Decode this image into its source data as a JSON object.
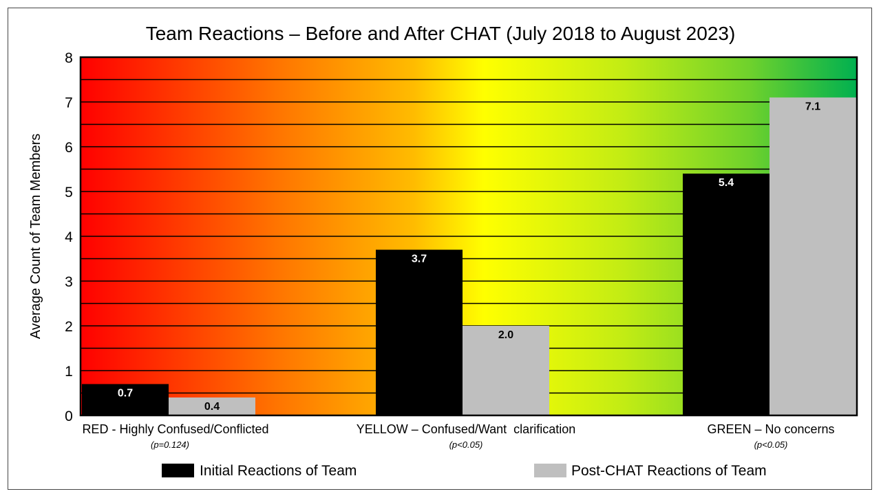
{
  "chart_data": {
    "type": "bar",
    "title": "Team Reactions – Before and After CHAT (July 2018 to August 2023)",
    "xlabel": "",
    "ylabel": "Average Count of Team Members",
    "ylim": [
      0,
      8
    ],
    "yticks": [
      "0",
      "1",
      "2",
      "3",
      "4",
      "5",
      "6",
      "7",
      "8"
    ],
    "categories": [
      "RED - Highly Confused/Conflicted",
      "YELLOW – Confused/Want  clarification",
      "GREEN – No concerns"
    ],
    "category_notes": [
      "(p=0.124)",
      "(p<0.05)",
      "(p<0.05)"
    ],
    "series": [
      {
        "name": "Initial Reactions of Team",
        "values": [
          0.7,
          3.7,
          5.4
        ],
        "labels": [
          "0.7",
          "3.7",
          "5.4"
        ],
        "color": "#000000"
      },
      {
        "name": "Post-CHAT Reactions of Team",
        "values": [
          0.4,
          2.0,
          7.1
        ],
        "labels": [
          "0.4",
          "2.0",
          "7.1"
        ],
        "color": "#bfbfbf"
      }
    ],
    "grid": true,
    "background": "red-yellow-green gradient",
    "legend_position": "bottom"
  }
}
